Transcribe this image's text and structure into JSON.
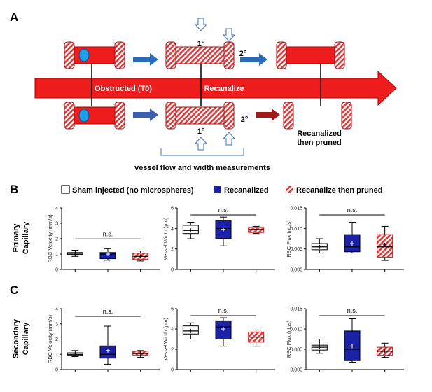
{
  "panel_a": {
    "label": "A",
    "obstructed": "Obstructed (T0)",
    "recanalize": "Recanalize",
    "primary_top": "1°",
    "secondary_top": "2°",
    "primary_bottom": "1°",
    "secondary_bottom": "2°",
    "pruned": [
      "Recanalized",
      "then pruned"
    ],
    "measure": "vessel flow and width measurements"
  },
  "panel_b": {
    "label": "B",
    "row": [
      "Primary",
      "Capillary"
    ]
  },
  "panel_c": {
    "label": "C",
    "row": [
      "Secondary",
      "Capillary"
    ]
  },
  "legend": [
    {
      "name": "Sham injected (no microspheres)",
      "color": "#ffffff"
    },
    {
      "name": "Recanalized",
      "color": "#1c22a8"
    },
    {
      "name": "Recanalize then pruned",
      "color": "#e03a3a",
      "hatch": true
    }
  ],
  "chart_data": [
    {
      "type": "box",
      "ylabel": "RBC Velocity (mm/s)",
      "annotation": "n.s.",
      "categories": [
        null,
        null,
        null
      ],
      "ylim": [
        0,
        4
      ],
      "yticks": [
        0,
        1,
        2,
        3,
        4
      ],
      "boxes": [
        {
          "min": 0.85,
          "q1": 0.95,
          "median": 1.0,
          "q3": 1.1,
          "max": 1.25,
          "mean": 1.0
        },
        {
          "min": 0.6,
          "q1": 0.7,
          "median": 1.0,
          "q3": 1.1,
          "max": 1.35,
          "mean": 1.0
        },
        {
          "min": 0.55,
          "q1": 0.65,
          "median": 0.85,
          "q3": 1.05,
          "max": 1.2,
          "mean": 0.85
        }
      ]
    },
    {
      "type": "box",
      "ylabel": "Vessel Width (µm)",
      "annotation": "n.s.",
      "categories": [
        null,
        null,
        null
      ],
      "ylim": [
        0,
        6
      ],
      "yticks": [
        0,
        2,
        4,
        6
      ],
      "boxes": [
        {
          "min": 3.0,
          "q1": 3.5,
          "median": 3.8,
          "q3": 4.3,
          "max": 4.6,
          "mean": 3.8
        },
        {
          "min": 2.3,
          "q1": 3.0,
          "median": 4.0,
          "q3": 4.8,
          "max": 5.1,
          "mean": 3.9
        },
        {
          "min": 3.5,
          "q1": 3.6,
          "median": 3.9,
          "q3": 4.1,
          "max": 4.2,
          "mean": 3.9
        }
      ]
    },
    {
      "type": "box",
      "ylabel": "RBC Flux (nL/s)",
      "annotation": "n.s.",
      "categories": [
        null,
        null,
        null
      ],
      "ylim": [
        0,
        0.015
      ],
      "yticks": [
        {
          "value": 0,
          "label": "0.000"
        },
        {
          "value": 0.005,
          "label": "0.005"
        },
        {
          "value": 0.01,
          "label": "0.010"
        },
        {
          "value": 0.015,
          "label": "0.015"
        }
      ],
      "boxes": [
        {
          "min": 0.004,
          "q1": 0.0048,
          "median": 0.0055,
          "q3": 0.0063,
          "max": 0.0075,
          "mean": 0.0055
        },
        {
          "min": 0.004,
          "q1": 0.0043,
          "median": 0.0055,
          "q3": 0.0085,
          "max": 0.0115,
          "mean": 0.0063
        },
        {
          "min": 0.0022,
          "q1": 0.003,
          "median": 0.0055,
          "q3": 0.0085,
          "max": 0.0105,
          "mean": 0.006
        }
      ]
    },
    {
      "type": "box",
      "ylabel": "RBC Velocity (mm/s)",
      "annotation": "n.s.",
      "categories": [
        null,
        null,
        null
      ],
      "ylim": [
        0,
        4
      ],
      "yticks": [
        0,
        1,
        2,
        3,
        4
      ],
      "boxes": [
        {
          "min": 0.85,
          "q1": 0.95,
          "median": 1.0,
          "q3": 1.1,
          "max": 1.25,
          "mean": 1.0
        },
        {
          "min": 0.35,
          "q1": 0.75,
          "median": 1.0,
          "q3": 1.55,
          "max": 2.85,
          "mean": 1.25
        },
        {
          "min": 0.8,
          "q1": 0.95,
          "median": 1.05,
          "q3": 1.2,
          "max": 1.25,
          "mean": 1.05
        }
      ]
    },
    {
      "type": "box",
      "ylabel": "Vessel Width (µm)",
      "annotation": "n.s.",
      "categories": [
        null,
        null,
        null
      ],
      "ylim": [
        0,
        6
      ],
      "yticks": [
        0,
        2,
        4,
        6
      ],
      "boxes": [
        {
          "min": 3.0,
          "q1": 3.5,
          "median": 3.8,
          "q3": 4.3,
          "max": 4.6,
          "mean": 3.8
        },
        {
          "min": 2.3,
          "q1": 3.0,
          "median": 4.2,
          "q3": 4.8,
          "max": 5.1,
          "mean": 4.0
        },
        {
          "min": 2.3,
          "q1": 2.7,
          "median": 3.2,
          "q3": 3.7,
          "max": 3.9,
          "mean": 3.2
        }
      ]
    },
    {
      "type": "box",
      "ylabel": "RBC Flux (nL/s)",
      "annotation": "n.s.",
      "categories": [
        null,
        null,
        null
      ],
      "ylim": [
        0,
        0.015
      ],
      "yticks": [
        {
          "value": 0,
          "label": "0.000"
        },
        {
          "value": 0.005,
          "label": "0.005"
        },
        {
          "value": 0.01,
          "label": "0.010"
        },
        {
          "value": 0.015,
          "label": "0.015"
        }
      ],
      "boxes": [
        {
          "min": 0.004,
          "q1": 0.0048,
          "median": 0.0055,
          "q3": 0.006,
          "max": 0.0075,
          "mean": 0.0055
        },
        {
          "min": 0.0018,
          "q1": 0.0022,
          "median": 0.005,
          "q3": 0.0095,
          "max": 0.0125,
          "mean": 0.0058
        },
        {
          "min": 0.003,
          "q1": 0.0035,
          "median": 0.0045,
          "q3": 0.0055,
          "max": 0.0065,
          "mean": 0.0045
        }
      ]
    }
  ]
}
